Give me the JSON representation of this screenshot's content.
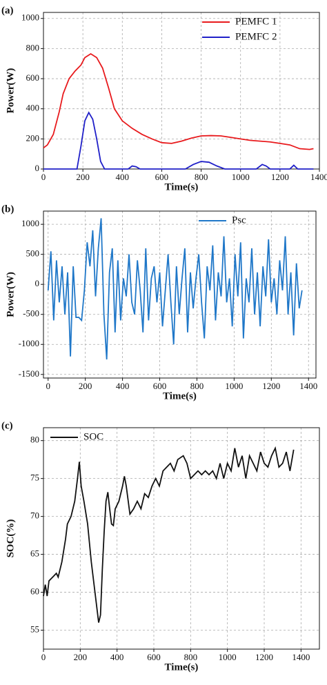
{
  "chart_data": [
    {
      "type": "line",
      "panel_label": "(a)",
      "x_label": "Time(s)",
      "y_label": "Power(W)",
      "xlim": [
        0,
        1400
      ],
      "ylim": [
        0,
        1040
      ],
      "xticks": [
        0,
        200,
        400,
        600,
        800,
        1000,
        1200,
        1400
      ],
      "yticks": [
        0,
        200,
        400,
        600,
        800,
        1000
      ],
      "grid": true,
      "legend": "upper right",
      "series": [
        {
          "name": "PEMFC 1",
          "color": "#e8191c",
          "x": [
            0,
            20,
            50,
            80,
            100,
            130,
            160,
            190,
            210,
            240,
            270,
            300,
            330,
            360,
            400,
            450,
            500,
            550,
            600,
            650,
            700,
            750,
            800,
            850,
            900,
            950,
            1000,
            1050,
            1100,
            1150,
            1200,
            1250,
            1300,
            1350,
            1370
          ],
          "values": [
            140,
            160,
            230,
            380,
            500,
            600,
            650,
            690,
            740,
            765,
            740,
            670,
            540,
            400,
            320,
            270,
            230,
            200,
            175,
            170,
            185,
            205,
            220,
            222,
            220,
            210,
            200,
            190,
            185,
            180,
            170,
            160,
            135,
            130,
            135
          ]
        },
        {
          "name": "PEMFC 2",
          "color": "#1f1fc8",
          "x": [
            0,
            170,
            190,
            210,
            230,
            250,
            270,
            290,
            310,
            430,
            450,
            470,
            490,
            720,
            760,
            800,
            840,
            880,
            920,
            1080,
            1110,
            1130,
            1150,
            1250,
            1270,
            1290,
            1370
          ],
          "values": [
            0,
            0,
            150,
            320,
            375,
            330,
            200,
            50,
            0,
            0,
            20,
            15,
            0,
            0,
            30,
            50,
            45,
            20,
            0,
            0,
            30,
            20,
            0,
            0,
            25,
            0,
            0
          ]
        }
      ]
    },
    {
      "type": "line",
      "panel_label": "(b)",
      "x_label": "Time(s)",
      "y_label": "Power(W)",
      "xlim": [
        -25,
        1440
      ],
      "ylim": [
        -1560,
        1220
      ],
      "xticks": [
        0,
        200,
        400,
        600,
        800,
        1000,
        1200,
        1400
      ],
      "yticks": [
        -1500,
        -1000,
        -500,
        0,
        500,
        1000
      ],
      "grid": true,
      "legend": "upper right",
      "series": [
        {
          "name": "Psc",
          "color": "#1f77c8",
          "x": [
            0,
            15,
            30,
            45,
            60,
            75,
            90,
            105,
            120,
            135,
            150,
            165,
            180,
            195,
            210,
            225,
            240,
            255,
            270,
            285,
            300,
            315,
            330,
            345,
            360,
            375,
            390,
            405,
            420,
            435,
            450,
            465,
            480,
            495,
            510,
            525,
            540,
            555,
            570,
            585,
            600,
            615,
            630,
            645,
            660,
            675,
            690,
            705,
            720,
            735,
            750,
            765,
            780,
            795,
            810,
            825,
            840,
            855,
            870,
            885,
            900,
            915,
            930,
            945,
            960,
            975,
            990,
            1005,
            1020,
            1035,
            1050,
            1065,
            1080,
            1095,
            1110,
            1125,
            1140,
            1155,
            1170,
            1185,
            1200,
            1215,
            1230,
            1245,
            1260,
            1275,
            1290,
            1305,
            1320,
            1335,
            1350,
            1365
          ],
          "values": [
            -100,
            550,
            -600,
            400,
            -300,
            300,
            -500,
            200,
            -1200,
            300,
            -550,
            -550,
            -600,
            -100,
            700,
            300,
            900,
            -200,
            600,
            1100,
            -500,
            -1250,
            200,
            600,
            -800,
            400,
            -600,
            100,
            -200,
            500,
            -300,
            -500,
            400,
            -100,
            -800,
            600,
            -600,
            100,
            300,
            -300,
            200,
            -700,
            -100,
            500,
            -300,
            -1000,
            300,
            -500,
            100,
            600,
            -800,
            200,
            -400,
            100,
            500,
            -300,
            -900,
            300,
            -100,
            650,
            -600,
            200,
            -200,
            800,
            -300,
            100,
            -700,
            500,
            -200,
            700,
            -900,
            100,
            -300,
            600,
            -500,
            200,
            -700,
            300,
            -200,
            750,
            -300,
            100,
            -500,
            400,
            -100,
            800,
            -500,
            200,
            -850,
            350,
            -400,
            -100
          ]
        }
      ]
    },
    {
      "type": "line",
      "panel_label": "(c)",
      "x_label": "Time(s)",
      "y_label": "SOC(%)",
      "xlim": [
        0,
        1500
      ],
      "ylim": [
        52.5,
        81.7
      ],
      "xticks": [
        0,
        200,
        400,
        600,
        800,
        1000,
        1200,
        1400
      ],
      "yticks": [
        55,
        60,
        65,
        70,
        75,
        80
      ],
      "grid": true,
      "legend": "upper left",
      "series": [
        {
          "name": "SOC",
          "color": "#111111",
          "x": [
            0,
            10,
            20,
            30,
            50,
            70,
            80,
            100,
            120,
            130,
            150,
            170,
            185,
            195,
            205,
            220,
            240,
            260,
            280,
            300,
            310,
            320,
            330,
            340,
            350,
            360,
            370,
            380,
            390,
            410,
            430,
            440,
            450,
            470,
            490,
            510,
            530,
            550,
            570,
            590,
            610,
            630,
            650,
            670,
            690,
            710,
            730,
            760,
            780,
            800,
            820,
            840,
            860,
            880,
            900,
            920,
            940,
            960,
            980,
            1000,
            1020,
            1040,
            1060,
            1080,
            1100,
            1120,
            1140,
            1160,
            1180,
            1200,
            1220,
            1240,
            1260,
            1280,
            1300,
            1320,
            1340,
            1360
          ],
          "values": [
            59.5,
            61,
            59.5,
            61.5,
            62,
            62.5,
            62,
            64,
            67,
            69,
            70,
            72,
            75,
            77.2,
            74,
            72,
            69,
            64,
            60,
            56,
            57,
            63,
            68,
            72,
            73.2,
            71,
            69,
            68.8,
            71,
            72,
            74,
            75.3,
            74,
            70.3,
            71,
            72,
            71,
            73,
            72.5,
            74,
            75,
            74,
            76,
            76.5,
            77,
            76,
            77.5,
            78,
            77,
            75,
            75.5,
            76,
            75.5,
            76,
            75.5,
            76,
            75,
            77,
            75,
            77,
            76,
            79,
            76.5,
            78,
            75,
            78,
            77,
            76,
            78.5,
            77,
            76.5,
            78,
            79,
            76.5,
            77,
            78.5,
            76,
            78.8
          ]
        }
      ]
    }
  ]
}
